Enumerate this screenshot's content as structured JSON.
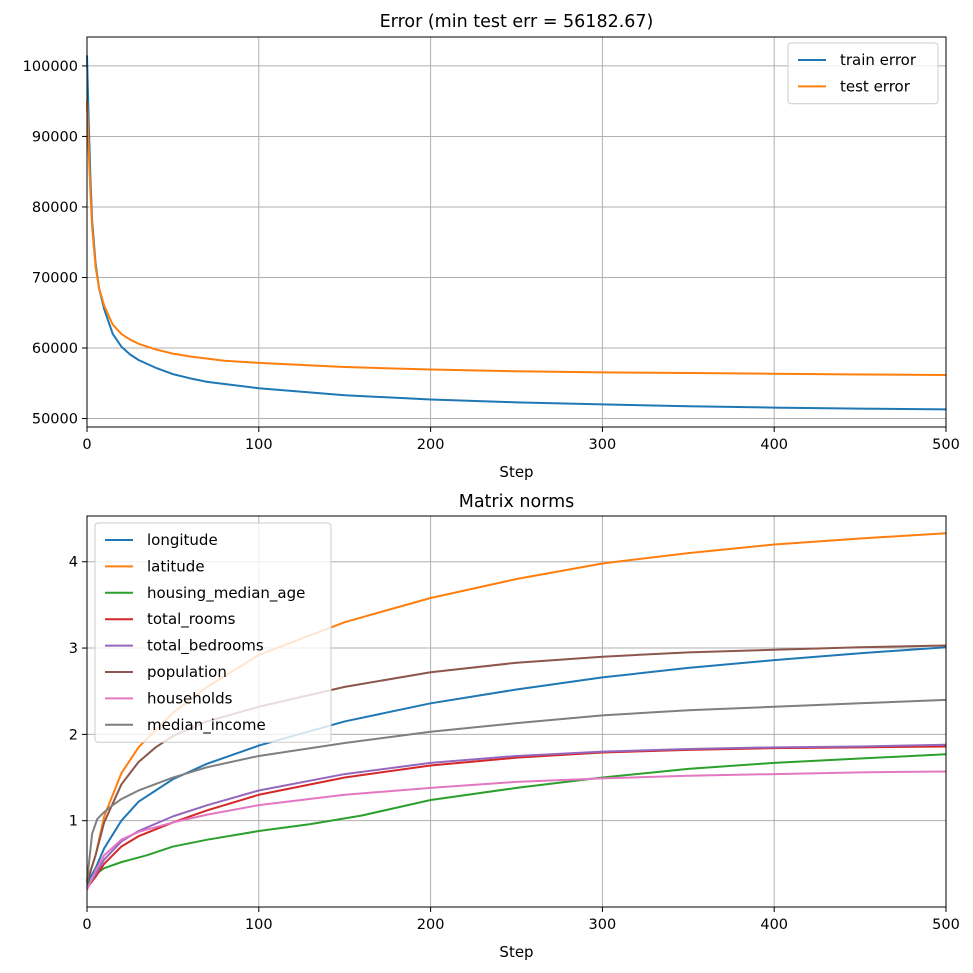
{
  "chart_data": [
    {
      "type": "line",
      "title": "Error (min test err = 56182.67)",
      "xlabel": "Step",
      "ylabel": "",
      "xlim": [
        0,
        500
      ],
      "ylim": [
        48800,
        104100
      ],
      "xticks": [
        0,
        100,
        200,
        300,
        400,
        500
      ],
      "xtick_labels": [
        "0",
        "100",
        "200",
        "300",
        "400",
        "500"
      ],
      "yticks": [
        50000,
        60000,
        70000,
        80000,
        90000,
        100000
      ],
      "ytick_labels": [
        "50000",
        "60000",
        "70000",
        "80000",
        "90000",
        "100000"
      ],
      "grid": true,
      "legend_loc": "upper right",
      "series": [
        {
          "name": "train error",
          "color": "#1f77b4",
          "x": [
            0,
            1,
            2,
            3,
            5,
            7,
            10,
            15,
            20,
            25,
            30,
            40,
            50,
            60,
            70,
            80,
            100,
            150,
            200,
            250,
            300,
            350,
            400,
            450,
            500
          ],
          "y": [
            101500,
            92000,
            84000,
            78000,
            72000,
            68500,
            65500,
            62000,
            60200,
            59100,
            58300,
            57200,
            56300,
            55700,
            55200,
            54900,
            54300,
            53300,
            52700,
            52300,
            52000,
            51750,
            51550,
            51400,
            51300
          ]
        },
        {
          "name": "test error",
          "color": "#ff7f0e",
          "x": [
            0,
            1,
            2,
            3,
            5,
            7,
            10,
            15,
            20,
            25,
            30,
            40,
            50,
            60,
            70,
            80,
            100,
            150,
            200,
            250,
            300,
            350,
            400,
            450,
            500
          ],
          "y": [
            95000,
            88000,
            82000,
            77000,
            71500,
            68500,
            66000,
            63300,
            62000,
            61200,
            60600,
            59800,
            59200,
            58800,
            58500,
            58200,
            57900,
            57300,
            56950,
            56700,
            56550,
            56450,
            56350,
            56250,
            56180
          ]
        }
      ]
    },
    {
      "type": "line",
      "title": "Matrix norms",
      "xlabel": "Step",
      "ylabel": "",
      "xlim": [
        0,
        500
      ],
      "ylim": [
        0,
        4.53
      ],
      "xticks": [
        0,
        100,
        200,
        300,
        400,
        500
      ],
      "xtick_labels": [
        "0",
        "100",
        "200",
        "300",
        "400",
        "500"
      ],
      "yticks": [
        1,
        2,
        3,
        4
      ],
      "ytick_labels": [
        "1",
        "2",
        "3",
        "4"
      ],
      "grid": true,
      "legend_loc": "upper left",
      "series": [
        {
          "name": "longitude",
          "color": "#1f77b4",
          "x": [
            0,
            5,
            10,
            20,
            30,
            50,
            70,
            100,
            150,
            200,
            250,
            300,
            350,
            400,
            450,
            500
          ],
          "y": [
            0.28,
            0.45,
            0.68,
            1.0,
            1.22,
            1.48,
            1.66,
            1.87,
            2.15,
            2.36,
            2.52,
            2.66,
            2.77,
            2.86,
            2.94,
            3.01
          ]
        },
        {
          "name": "latitude",
          "color": "#ff7f0e",
          "x": [
            0,
            5,
            10,
            20,
            30,
            50,
            70,
            100,
            150,
            200,
            250,
            300,
            350,
            400,
            450,
            500
          ],
          "y": [
            0.3,
            0.6,
            1.05,
            1.55,
            1.85,
            2.25,
            2.55,
            2.92,
            3.3,
            3.58,
            3.8,
            3.98,
            4.1,
            4.2,
            4.27,
            4.33
          ]
        },
        {
          "name": "housing_median_age",
          "color": "#2ca02c",
          "x": [
            0,
            5,
            10,
            20,
            35,
            50,
            70,
            100,
            130,
            160,
            200,
            250,
            300,
            350,
            400,
            450,
            500
          ],
          "y": [
            0.25,
            0.38,
            0.45,
            0.52,
            0.6,
            0.7,
            0.78,
            0.88,
            0.96,
            1.06,
            1.24,
            1.38,
            1.5,
            1.6,
            1.67,
            1.72,
            1.77
          ]
        },
        {
          "name": "total_rooms",
          "color": "#d62728",
          "x": [
            0,
            5,
            10,
            20,
            30,
            50,
            70,
            100,
            150,
            200,
            250,
            300,
            350,
            400,
            450,
            500
          ],
          "y": [
            0.22,
            0.35,
            0.5,
            0.7,
            0.82,
            0.98,
            1.12,
            1.3,
            1.5,
            1.64,
            1.73,
            1.79,
            1.82,
            1.84,
            1.85,
            1.86
          ]
        },
        {
          "name": "total_bedrooms",
          "color": "#9467bd",
          "x": [
            0,
            5,
            10,
            20,
            30,
            50,
            70,
            100,
            150,
            200,
            250,
            300,
            350,
            400,
            450,
            500
          ],
          "y": [
            0.22,
            0.38,
            0.55,
            0.76,
            0.88,
            1.05,
            1.18,
            1.35,
            1.54,
            1.67,
            1.75,
            1.8,
            1.83,
            1.85,
            1.86,
            1.88
          ]
        },
        {
          "name": "population",
          "color": "#8c564b",
          "x": [
            0,
            5,
            10,
            20,
            30,
            40,
            50,
            70,
            100,
            150,
            200,
            250,
            300,
            350,
            400,
            450,
            500
          ],
          "y": [
            0.28,
            0.6,
            0.98,
            1.42,
            1.68,
            1.85,
            1.98,
            2.15,
            2.32,
            2.55,
            2.72,
            2.83,
            2.9,
            2.95,
            2.98,
            3.01,
            3.03
          ]
        },
        {
          "name": "households",
          "color": "#e377c2",
          "x": [
            0,
            5,
            10,
            20,
            30,
            50,
            70,
            100,
            150,
            200,
            250,
            300,
            350,
            400,
            450,
            500
          ],
          "y": [
            0.2,
            0.42,
            0.6,
            0.78,
            0.87,
            0.98,
            1.07,
            1.18,
            1.3,
            1.38,
            1.45,
            1.49,
            1.52,
            1.54,
            1.56,
            1.57
          ]
        },
        {
          "name": "median_income",
          "color": "#7f7f7f",
          "x": [
            0,
            3,
            6,
            10,
            15,
            20,
            30,
            50,
            70,
            100,
            150,
            200,
            250,
            300,
            350,
            400,
            450,
            500
          ],
          "y": [
            0.3,
            0.85,
            1.02,
            1.1,
            1.18,
            1.25,
            1.35,
            1.5,
            1.62,
            1.75,
            1.9,
            2.03,
            2.13,
            2.22,
            2.28,
            2.32,
            2.36,
            2.4
          ]
        }
      ]
    }
  ]
}
